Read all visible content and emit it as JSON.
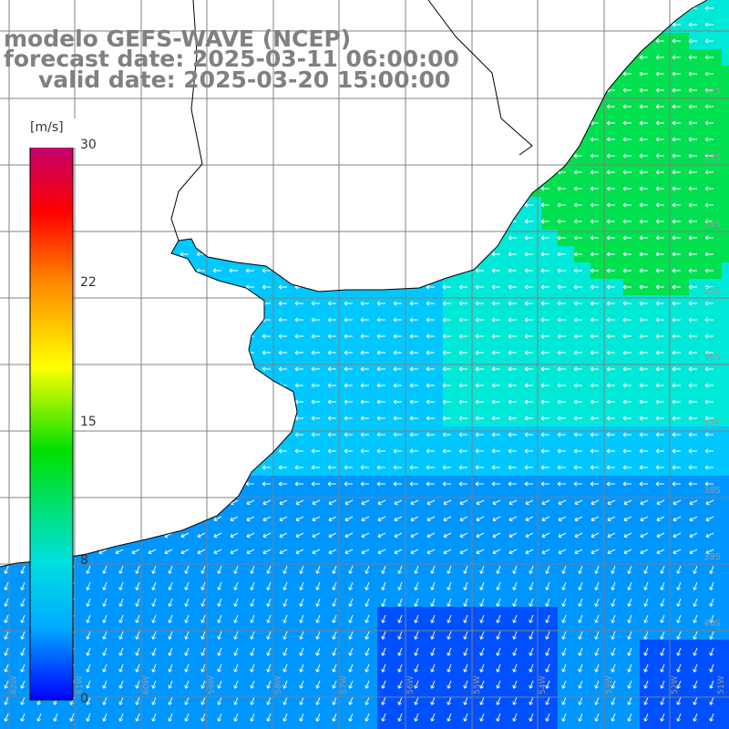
{
  "title": {
    "line1": "modelo GEFS-WAVE (NCEP)",
    "line2": "forecast date: 2025-03-11 06:00:00",
    "line3": "valid date: 2025-03-20 15:00:00"
  },
  "colorbar": {
    "unit": "[m/s]",
    "ticks": [
      "30",
      "22",
      "15",
      "8",
      "0"
    ],
    "colors": [
      "#c0006e",
      "#ff0000",
      "#ff8c00",
      "#ffff00",
      "#00e000",
      "#00e0e0",
      "#00aaff",
      "#0000ff"
    ]
  },
  "map": {
    "lat_labels": [
      "32S",
      "33S",
      "34S",
      "35S",
      "36S",
      "37S",
      "38S",
      "39S",
      "40S"
    ],
    "lon_labels": [
      "62W",
      "61W",
      "60W",
      "59W",
      "58W",
      "57W",
      "56W",
      "55W",
      "54W",
      "53W",
      "52W",
      "51W"
    ],
    "colors": {
      "land": "#ffffff",
      "coast": "#000000",
      "grid": "#808080",
      "green": "#00e050",
      "teal": "#00e8d8",
      "cyan": "#00c8ff",
      "blue": "#0096ff",
      "deep_blue": "#0050ff",
      "arrow": "#ffffff"
    }
  }
}
